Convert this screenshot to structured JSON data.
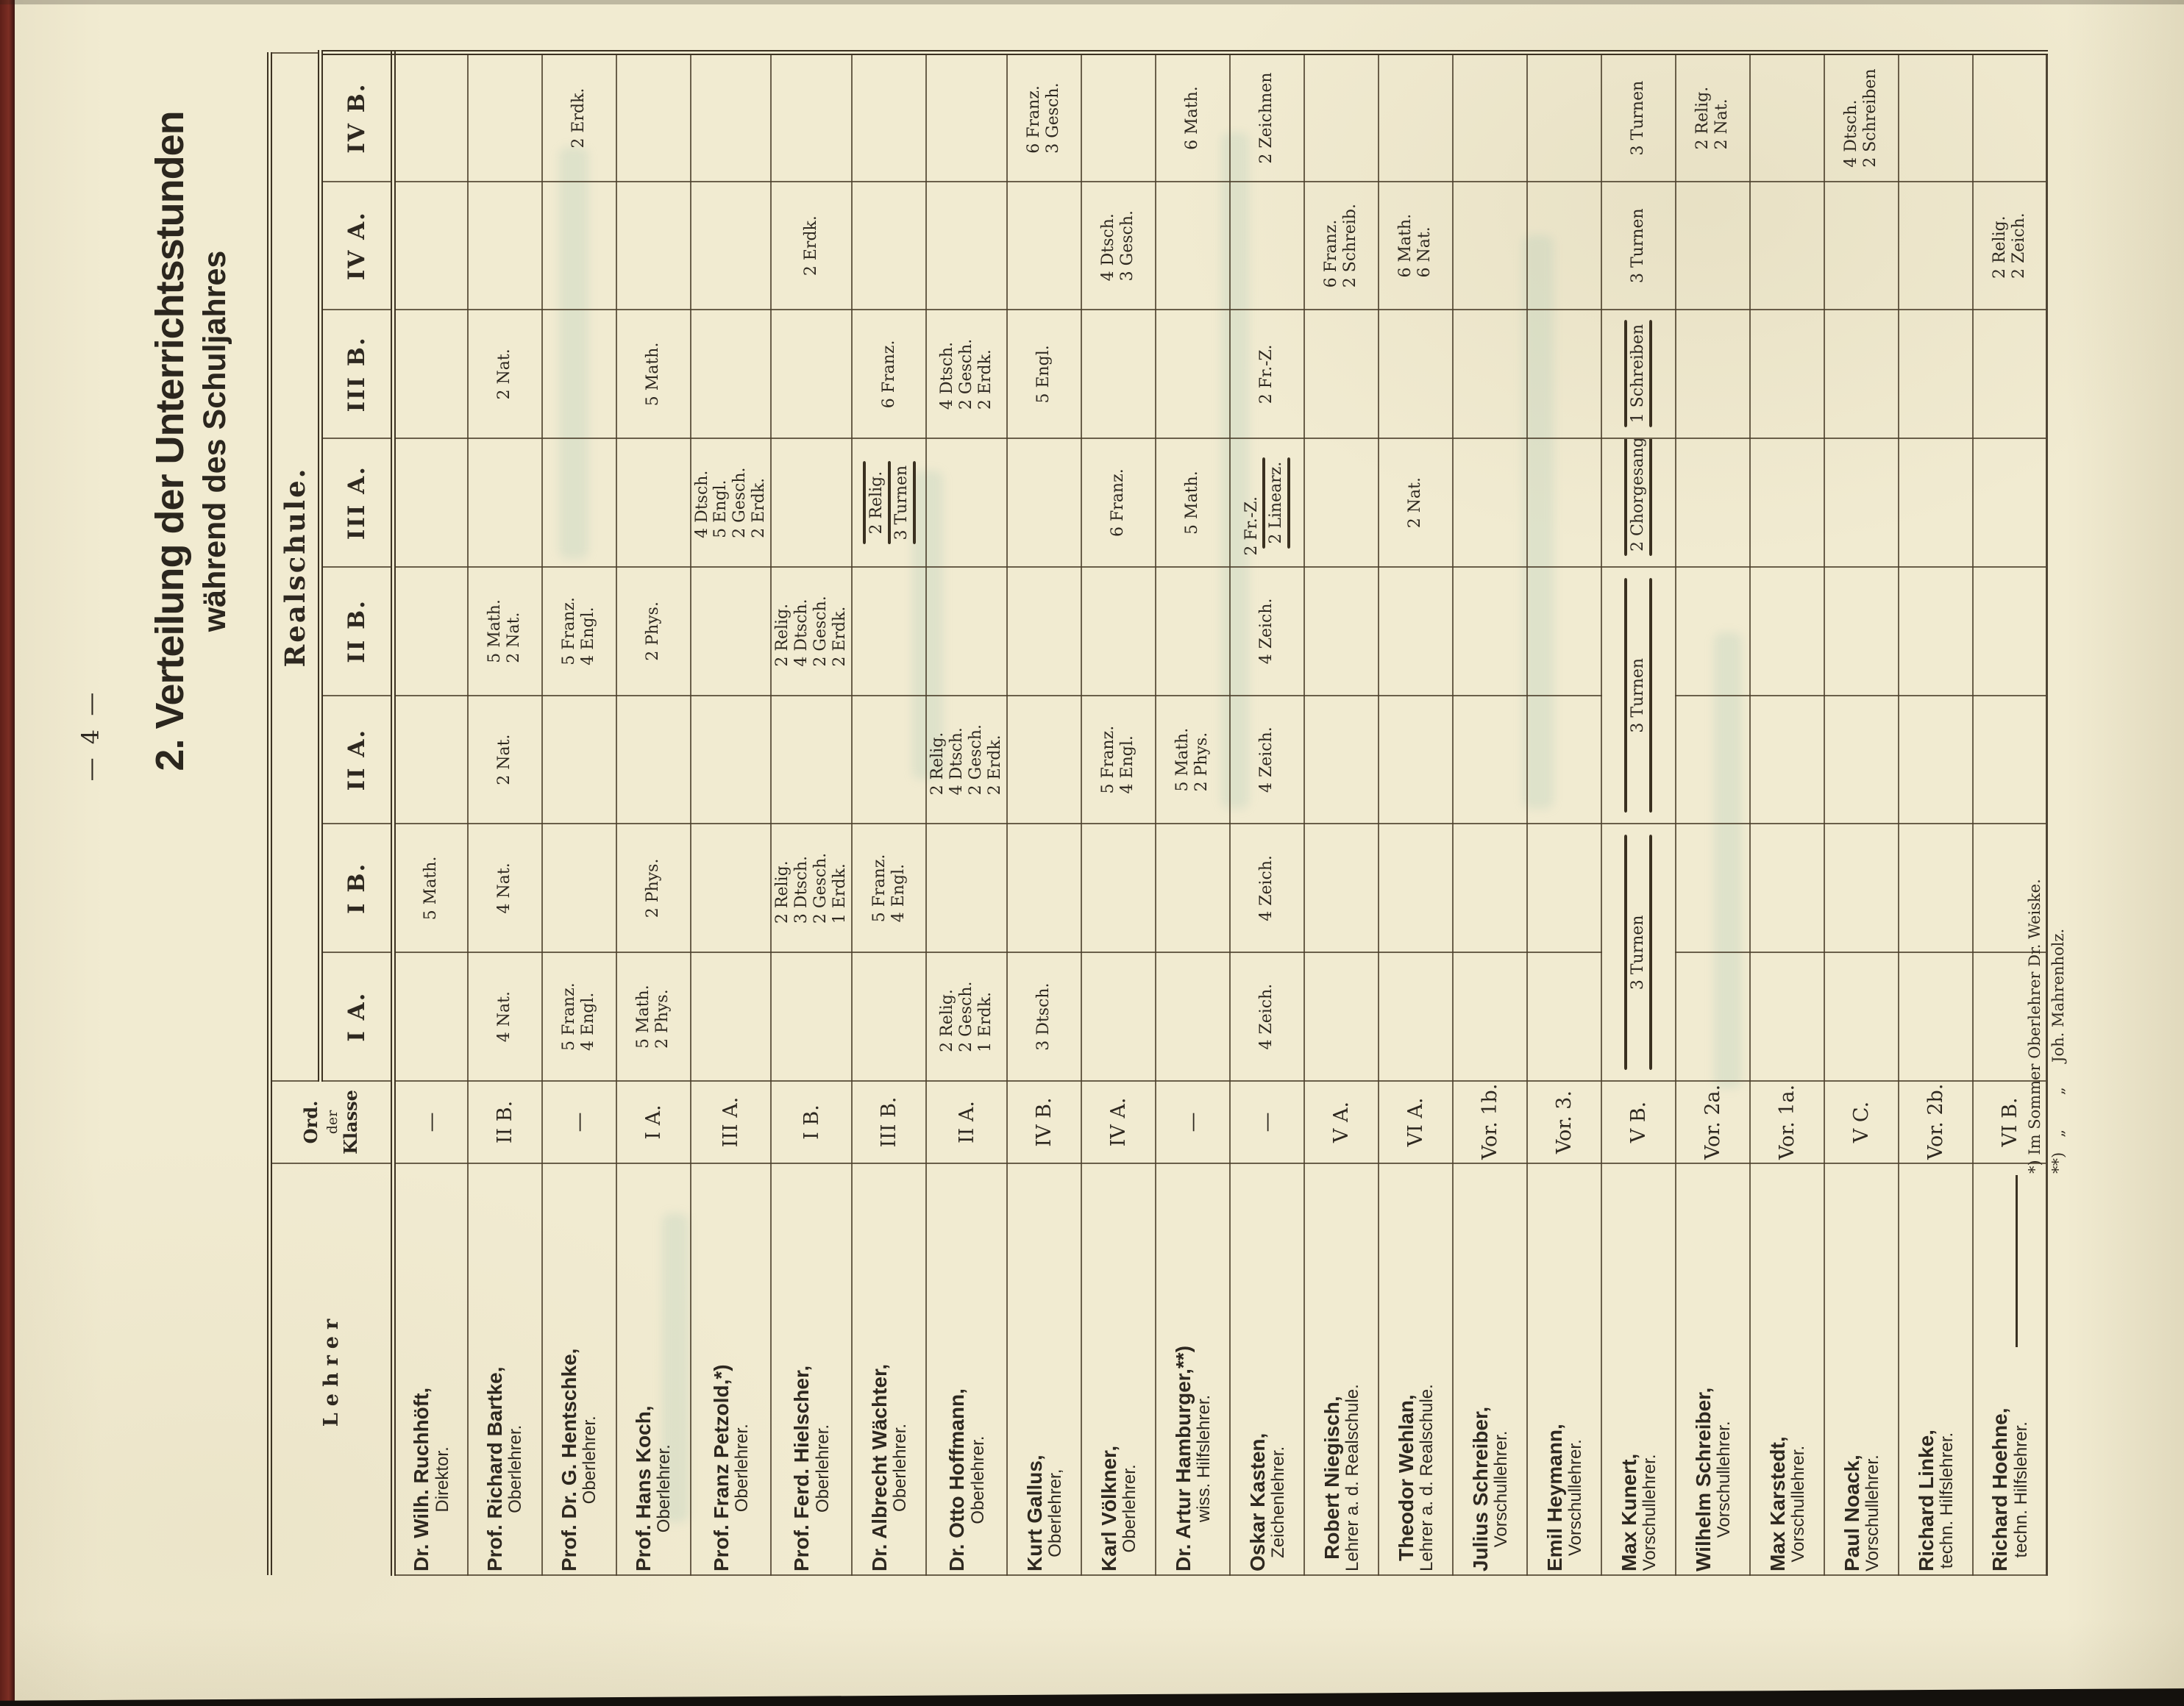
{
  "page": {
    "number": "— 4 —",
    "title": "2. Verteilung der Unterrichtsstunden",
    "subtitle": "während des Schuljahres"
  },
  "table": {
    "lehrer_header": "Lehrer",
    "ord_header": [
      "Ord.",
      "der",
      "Klasse"
    ],
    "school_header": "Realschule.",
    "classes": [
      "I A.",
      "I B.",
      "II A.",
      "II B.",
      "III A.",
      "III B.",
      "IV A.",
      "IV B."
    ],
    "teachers": [
      {
        "name": "Dr. Wilh. Ruchhöft,",
        "title": "Direktor.",
        "ord": "—",
        "cells": {
          "I B.": [
            "5 Math."
          ]
        }
      },
      {
        "name": "Prof. Richard Bartke,",
        "title": "Oberlehrer.",
        "ord": "II B.",
        "cells": {
          "I A.": [
            "4 Nat."
          ],
          "I B.": [
            "4 Nat."
          ],
          "II A.": [
            "2 Nat."
          ],
          "II B.": [
            "5 Math.",
            "2 Nat."
          ],
          "III B.": [
            "2 Nat."
          ]
        }
      },
      {
        "name": "Prof. Dr. G. Hentschke,",
        "title": "Oberlehrer.",
        "ord": "—",
        "cells": {
          "I A.": [
            "5 Franz.",
            "4 Engl."
          ],
          "II B.": [
            "5 Franz.",
            "4 Engl."
          ],
          "IV B.": [
            "2 Erdk."
          ]
        }
      },
      {
        "name": "Prof. Hans Koch,",
        "title": "Oberlehrer.",
        "ord": "I A.",
        "cells": {
          "I A.": [
            "5 Math.",
            "2 Phys."
          ],
          "I B.": [
            "2 Phys."
          ],
          "II B.": [
            "2 Phys."
          ],
          "III B.": [
            "5 Math."
          ]
        }
      },
      {
        "name": "Prof. Franz Petzold,*)",
        "title": "Oberlehrer.",
        "ord": "III A.",
        "cells": {
          "III A.": [
            "4 Dtsch.",
            "5 Engl.",
            "2 Gesch.",
            "2 Erdk."
          ]
        }
      },
      {
        "name": "Prof. Ferd. Hielscher,",
        "title": "Oberlehrer.",
        "ord": "I B.",
        "cells": {
          "I B.": [
            "2 Relig.",
            "3 Dtsch.",
            "2 Gesch.",
            "1 Erdk."
          ],
          "II B.": [
            "2 Relig.",
            "4 Dtsch.",
            "2 Gesch.",
            "2 Erdk."
          ],
          "IV A.": [
            "2 Erdk."
          ]
        }
      },
      {
        "name": "Dr. Albrecht Wächter,",
        "title": "Oberlehrer.",
        "ord": "III B.",
        "cells": {
          "I B.": [
            "5 Franz.",
            "4 Engl."
          ],
          "III A.": [
            {
              "t": "2 Relig.",
              "brace": true
            },
            {
              "t": "3 Turnen",
              "brace": true
            }
          ],
          "III B.": [
            "6 Franz."
          ]
        }
      },
      {
        "name": "Dr. Otto Hoffmann,",
        "title": "Oberlehrer.",
        "ord": "II A.",
        "cells": {
          "I A.": [
            "2 Relig.",
            "2 Gesch.",
            "1 Erdk."
          ],
          "II A.": [
            "2 Relig.",
            "4 Dtsch.",
            "2 Gesch.",
            "2 Erdk."
          ],
          "III B.": [
            "4 Dtsch.",
            "2 Gesch.",
            "2 Erdk."
          ]
        }
      },
      {
        "name": "Kurt Gallus,",
        "title": "Oberlehrer,",
        "ord": "IV B.",
        "cells": {
          "I A.": [
            "3 Dtsch."
          ],
          "III B.": [
            "5 Engl."
          ],
          "IV B.": [
            "6 Franz.",
            "3 Gesch."
          ]
        }
      },
      {
        "name": "Karl Völkner,",
        "title": "Oberlehrer.",
        "ord": "IV A.",
        "cells": {
          "II A.": [
            "5 Franz.",
            "4 Engl."
          ],
          "III A.": [
            "6 Franz."
          ],
          "IV A.": [
            "4 Dtsch.",
            "3 Gesch."
          ]
        }
      },
      {
        "name": "Dr. Artur Hamburger,**)",
        "title": "wiss. Hilfslehrer.",
        "ord": "—",
        "cells": {
          "II A.": [
            "5 Math.",
            "2 Phys."
          ],
          "III A.": [
            "5 Math."
          ],
          "IV B.": [
            "6 Math."
          ]
        }
      },
      {
        "name": "Oskar Kasten,",
        "title": "Zeichenlehrer.",
        "ord": "—",
        "cells": {
          "I A.": [
            "4 Zeich."
          ],
          "I B.": [
            "4 Zeich."
          ],
          "II A.": [
            "4 Zeich."
          ],
          "II B.": [
            "4 Zeich."
          ],
          "III A.": [
            "2 Fr.-Z.",
            {
              "t": "2 Linearz.",
              "brace": true
            }
          ],
          "III B.": [
            "2 Fr.-Z."
          ],
          "IV B.": [
            "2 Zeichnen"
          ]
        }
      },
      {
        "name": "Robert Niegisch,",
        "title": "Lehrer a. d. Realschule.",
        "ord": "V A.",
        "cells": {
          "IV A.": [
            "6 Franz.",
            "2 Schreib."
          ]
        }
      },
      {
        "name": "Theodor Wehlan,",
        "title": "Lehrer a. d. Realschule.",
        "ord": "VI A.",
        "cells": {
          "III A.": [
            "2 Nat."
          ],
          "IV A.": [
            "6 Math.",
            "6 Nat."
          ]
        }
      },
      {
        "name": "Julius Schreiber,",
        "title": "Vorschullehrer.",
        "ord": "Vor. 1b.",
        "cells": {}
      },
      {
        "name": "Emil Heymann,",
        "title": "Vorschullehrer.",
        "ord": "Vor. 3.",
        "cells": {}
      },
      {
        "name": "Max Kunert,",
        "title": "Vorschullehrer.",
        "ord": "V B.",
        "cells": {
          "III A.": [
            {
              "t": "2 Chorgesang",
              "brace": true
            }
          ],
          "III B.": [
            {
              "t": "1 Schreiben",
              "brace": true
            }
          ],
          "IV A.": [
            "3 Turnen"
          ],
          "IV B.": [
            "3 Turnen"
          ]
        },
        "spans": [
          {
            "start": "I A.",
            "end": "I B.",
            "lines": [
              {
                "t": "3 Turnen",
                "brace": true
              }
            ]
          },
          {
            "start": "II A.",
            "end": "II B.",
            "lines": [
              {
                "t": "3 Turnen",
                "brace": true
              }
            ]
          }
        ]
      },
      {
        "name": "Wilhelm Schreiber,",
        "title": "Vorschullehrer.",
        "ord": "Vor. 2a.",
        "cells": {
          "IV B.": [
            "2 Relig.",
            "2 Nat."
          ]
        }
      },
      {
        "name": "Max Karstedt,",
        "title": "Vorschullehrer.",
        "ord": "Vor. 1a.",
        "cells": {}
      },
      {
        "name": "Paul Noack,",
        "title": "Vorschullehrer.",
        "ord": "V C.",
        "cells": {
          "IV B.": [
            "4 Dtsch.",
            "2 Schreiben"
          ]
        }
      },
      {
        "name": "Richard Linke,",
        "title": "techn. Hilfslehrer.",
        "ord": "Vor. 2b.",
        "cells": {}
      },
      {
        "name": "Richard Hoehne,",
        "title": "techn. Hilfslehrer.",
        "ord": "VI B.",
        "cells": {
          "IV A.": [
            "2 Relig.",
            "2 Zeich."
          ]
        }
      }
    ]
  },
  "footnotes": [
    "*) Im Sommer Oberlehrer Dr. Weiske.",
    "**)   „       „     Joh. Mahrenholz."
  ],
  "colors": {
    "paper": "#f1ebd1",
    "ink": "#2e2820",
    "rule": "#3c3222",
    "binding_edge": "#7c2e24"
  }
}
